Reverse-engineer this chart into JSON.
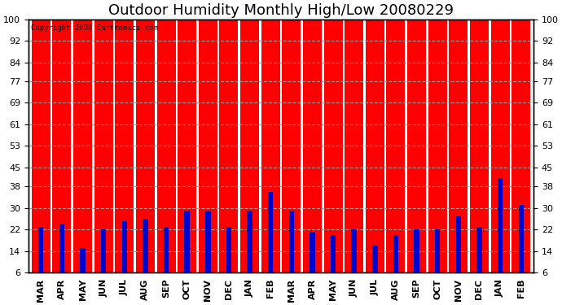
{
  "title": "Outdoor Humidity Monthly High/Low 20080229",
  "copyright": "Copyright 2008 Cartronics.com",
  "categories": [
    "MAR",
    "APR",
    "MAY",
    "JUN",
    "JUL",
    "AUG",
    "SEP",
    "OCT",
    "NOV",
    "DEC",
    "JAN",
    "FEB",
    "MAR",
    "APR",
    "MAY",
    "JUN",
    "JUL",
    "AUG",
    "SEP",
    "OCT",
    "NOV",
    "DEC",
    "JAN",
    "FEB"
  ],
  "high_values": [
    100,
    100,
    100,
    100,
    100,
    100,
    100,
    100,
    100,
    100,
    100,
    100,
    100,
    100,
    100,
    100,
    100,
    100,
    100,
    100,
    100,
    100,
    100,
    100
  ],
  "low_values": [
    23,
    24,
    15,
    22,
    25,
    26,
    23,
    29,
    29,
    23,
    29,
    36,
    29,
    21,
    20,
    22,
    16,
    20,
    22,
    22,
    27,
    23,
    41,
    31
  ],
  "high_color": "#ff0000",
  "low_color": "#0000cc",
  "bg_color": "#ffffff",
  "plot_bg_color": "#ffffff",
  "yticks": [
    6,
    14,
    22,
    30,
    38,
    45,
    53,
    61,
    69,
    77,
    84,
    92,
    100
  ],
  "ymin": 6,
  "ymax": 100,
  "grid_color": "#999999",
  "title_fontsize": 13,
  "tick_fontsize": 8,
  "red_bar_width": 0.45,
  "blue_bar_width": 0.25
}
